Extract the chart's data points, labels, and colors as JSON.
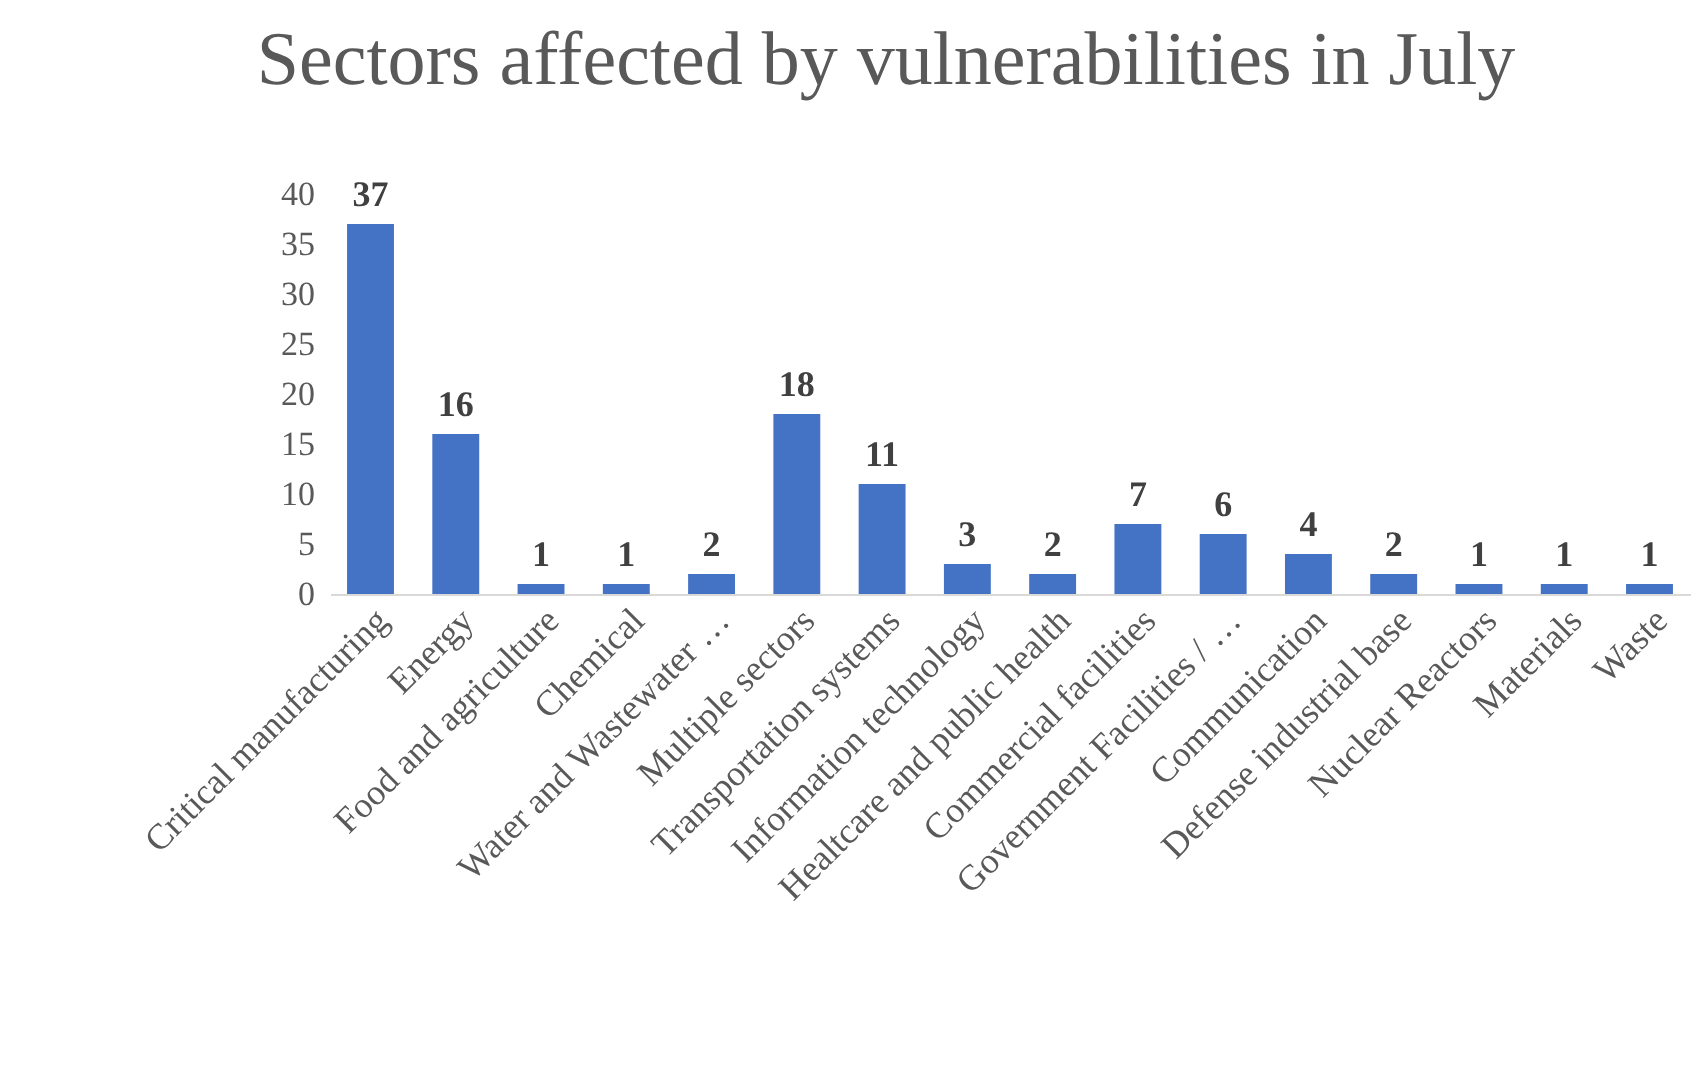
{
  "chart_data": {
    "type": "bar",
    "title": "Sectors affected by vulnerabilities in July",
    "categories": [
      "Critical manufacturing",
      "Energy",
      "Food and agriculture",
      "Chemical",
      "Water and Wastewater …",
      "Multiple sectors",
      "Transportation systems",
      "Information technology",
      "Healtcare and public health",
      "Commercial facilities",
      "Government Facilities / …",
      "Communication",
      "Defense industrial base",
      "Nuclear Reactors",
      "Materials",
      "Waste"
    ],
    "values": [
      37,
      16,
      1,
      1,
      2,
      18,
      11,
      3,
      2,
      7,
      6,
      4,
      2,
      1,
      1,
      1
    ],
    "color": "#4472c4",
    "ylim": [
      0,
      40
    ],
    "yticks": [
      0,
      5,
      10,
      15,
      20,
      25,
      30,
      35,
      40
    ],
    "grid": false,
    "data_labels": true
  }
}
